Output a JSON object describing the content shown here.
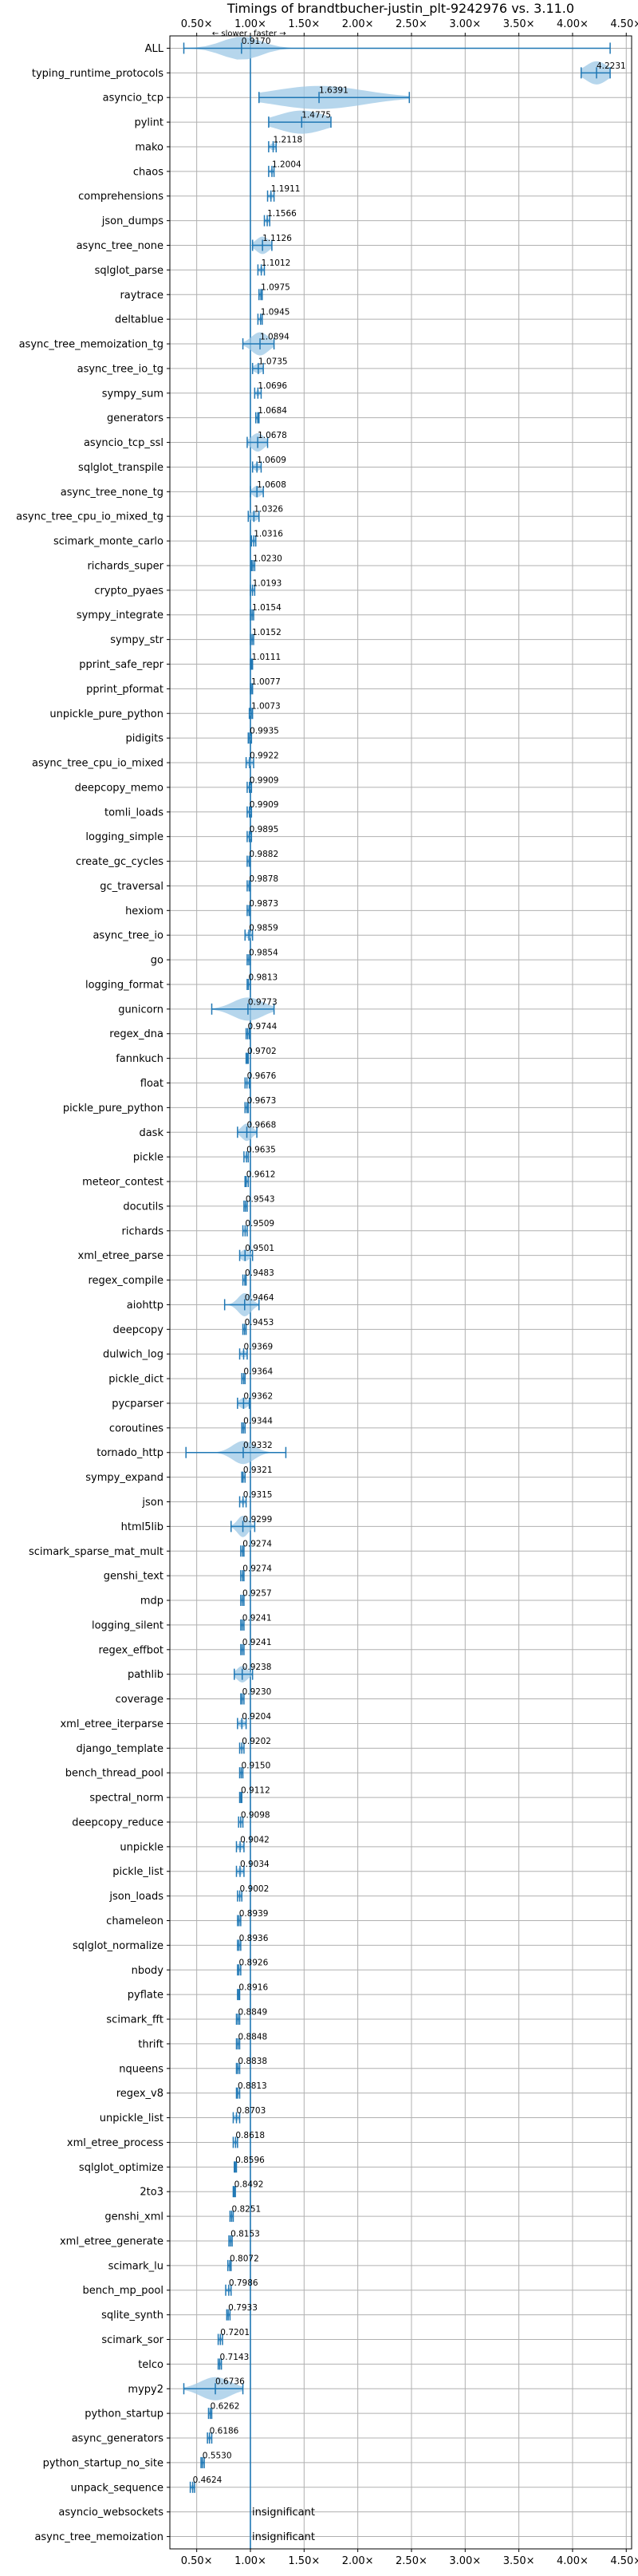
{
  "chart_data": {
    "type": "violin",
    "title": "Timings of brandtbucher-justin_plt-9242976 vs. 3.11.0",
    "direction_hint": {
      "slower": "← slower",
      "faster": "faster →"
    },
    "xlim": [
      0.25,
      4.55
    ],
    "xticks": [
      0.5,
      1.0,
      1.5,
      2.0,
      2.5,
      3.0,
      3.5,
      4.0,
      4.5
    ],
    "xtick_labels": [
      "0.50×",
      "1.00×",
      "1.50×",
      "2.00×",
      "2.50×",
      "3.00×",
      "3.50×",
      "4.00×",
      "4.50×"
    ],
    "reference_line": 1.0,
    "grid": true,
    "colors": {
      "violin": "#9ec8e6",
      "whisker": "#1f77b4",
      "grid": "#b0b0b0"
    },
    "insignificant_label": "insignificant",
    "benchmarks": [
      {
        "name": "ALL",
        "value": 0.917,
        "label": "0.9170",
        "min": 0.38,
        "max": 4.35,
        "spread": 0.18
      },
      {
        "name": "typing_runtime_protocols",
        "value": 4.2231,
        "label": "4.2231",
        "min": 4.08,
        "max": 4.35,
        "spread": 0.1
      },
      {
        "name": "asyncio_tcp",
        "value": 1.6391,
        "label": "1.6391",
        "min": 1.08,
        "max": 2.48,
        "spread": 0.42
      },
      {
        "name": "pylint",
        "value": 1.4775,
        "label": "1.4775",
        "min": 1.17,
        "max": 1.75,
        "spread": 0.22
      },
      {
        "name": "mako",
        "value": 1.2118,
        "label": "1.2118",
        "min": 1.17,
        "max": 1.24,
        "spread": 0.03
      },
      {
        "name": "chaos",
        "value": 1.2004,
        "label": "1.2004",
        "min": 1.17,
        "max": 1.22,
        "spread": 0.02
      },
      {
        "name": "comprehensions",
        "value": 1.1911,
        "label": "1.1911",
        "min": 1.16,
        "max": 1.22,
        "spread": 0.02
      },
      {
        "name": "json_dumps",
        "value": 1.1566,
        "label": "1.1566",
        "min": 1.13,
        "max": 1.18,
        "spread": 0.02
      },
      {
        "name": "async_tree_none",
        "value": 1.1126,
        "label": "1.1126",
        "min": 1.02,
        "max": 1.2,
        "spread": 0.06
      },
      {
        "name": "sqlglot_parse",
        "value": 1.1012,
        "label": "1.1012",
        "min": 1.07,
        "max": 1.13,
        "spread": 0.02
      },
      {
        "name": "raytrace",
        "value": 1.0975,
        "label": "1.0975",
        "min": 1.08,
        "max": 1.11,
        "spread": 0.02
      },
      {
        "name": "deltablue",
        "value": 1.0945,
        "label": "1.0945",
        "min": 1.07,
        "max": 1.11,
        "spread": 0.02
      },
      {
        "name": "async_tree_memoization_tg",
        "value": 1.0894,
        "label": "1.0894",
        "min": 0.93,
        "max": 1.22,
        "spread": 0.08
      },
      {
        "name": "async_tree_io_tg",
        "value": 1.0735,
        "label": "1.0735",
        "min": 1.02,
        "max": 1.12,
        "spread": 0.04
      },
      {
        "name": "sympy_sum",
        "value": 1.0696,
        "label": "1.0696",
        "min": 1.04,
        "max": 1.1,
        "spread": 0.02
      },
      {
        "name": "generators",
        "value": 1.0684,
        "label": "1.0684",
        "min": 1.05,
        "max": 1.08,
        "spread": 0.02
      },
      {
        "name": "asyncio_tcp_ssl",
        "value": 1.0678,
        "label": "1.0678",
        "min": 0.97,
        "max": 1.16,
        "spread": 0.06
      },
      {
        "name": "sqlglot_transpile",
        "value": 1.0609,
        "label": "1.0609",
        "min": 1.02,
        "max": 1.1,
        "spread": 0.03
      },
      {
        "name": "async_tree_none_tg",
        "value": 1.0608,
        "label": "1.0608",
        "min": 1.0,
        "max": 1.12,
        "spread": 0.04
      },
      {
        "name": "async_tree_cpu_io_mixed_tg",
        "value": 1.0326,
        "label": "1.0326",
        "min": 0.98,
        "max": 1.08,
        "spread": 0.04
      },
      {
        "name": "scimark_monte_carlo",
        "value": 1.0316,
        "label": "1.0316",
        "min": 1.01,
        "max": 1.05,
        "spread": 0.02
      },
      {
        "name": "richards_super",
        "value": 1.023,
        "label": "1.0230",
        "min": 1.01,
        "max": 1.04,
        "spread": 0.02
      },
      {
        "name": "crypto_pyaes",
        "value": 1.0193,
        "label": "1.0193",
        "min": 1.0,
        "max": 1.04,
        "spread": 0.02
      },
      {
        "name": "sympy_integrate",
        "value": 1.0154,
        "label": "1.0154",
        "min": 1.0,
        "max": 1.03,
        "spread": 0.02
      },
      {
        "name": "sympy_str",
        "value": 1.0152,
        "label": "1.0152",
        "min": 1.0,
        "max": 1.03,
        "spread": 0.02
      },
      {
        "name": "pprint_safe_repr",
        "value": 1.0111,
        "label": "1.0111",
        "min": 1.0,
        "max": 1.02,
        "spread": 0.02
      },
      {
        "name": "pprint_pformat",
        "value": 1.0077,
        "label": "1.0077",
        "min": 1.0,
        "max": 1.02,
        "spread": 0.02
      },
      {
        "name": "unpickle_pure_python",
        "value": 1.0073,
        "label": "1.0073",
        "min": 0.99,
        "max": 1.02,
        "spread": 0.02
      },
      {
        "name": "pidigits",
        "value": 0.9935,
        "label": "0.9935",
        "min": 0.98,
        "max": 1.01,
        "spread": 0.02
      },
      {
        "name": "async_tree_cpu_io_mixed",
        "value": 0.9922,
        "label": "0.9922",
        "min": 0.96,
        "max": 1.03,
        "spread": 0.03
      },
      {
        "name": "deepcopy_memo",
        "value": 0.9909,
        "label": "0.9909",
        "min": 0.97,
        "max": 1.01,
        "spread": 0.02
      },
      {
        "name": "tomli_loads",
        "value": 0.9909,
        "label": "0.9909",
        "min": 0.97,
        "max": 1.01,
        "spread": 0.02
      },
      {
        "name": "logging_simple",
        "value": 0.9895,
        "label": "0.9895",
        "min": 0.97,
        "max": 1.01,
        "spread": 0.02
      },
      {
        "name": "create_gc_cycles",
        "value": 0.9882,
        "label": "0.9882",
        "min": 0.97,
        "max": 1.0,
        "spread": 0.02
      },
      {
        "name": "gc_traversal",
        "value": 0.9878,
        "label": "0.9878",
        "min": 0.97,
        "max": 1.0,
        "spread": 0.02
      },
      {
        "name": "hexiom",
        "value": 0.9873,
        "label": "0.9873",
        "min": 0.97,
        "max": 1.0,
        "spread": 0.02
      },
      {
        "name": "async_tree_io",
        "value": 0.9859,
        "label": "0.9859",
        "min": 0.95,
        "max": 1.02,
        "spread": 0.03
      },
      {
        "name": "go",
        "value": 0.9854,
        "label": "0.9854",
        "min": 0.97,
        "max": 1.0,
        "spread": 0.02
      },
      {
        "name": "logging_format",
        "value": 0.9813,
        "label": "0.9813",
        "min": 0.97,
        "max": 1.0,
        "spread": 0.02
      },
      {
        "name": "gunicorn",
        "value": 0.9773,
        "label": "0.9773",
        "min": 0.64,
        "max": 1.22,
        "spread": 0.14
      },
      {
        "name": "regex_dna",
        "value": 0.9744,
        "label": "0.9744",
        "min": 0.96,
        "max": 0.99,
        "spread": 0.02
      },
      {
        "name": "fannkuch",
        "value": 0.9702,
        "label": "0.9702",
        "min": 0.96,
        "max": 0.98,
        "spread": 0.02
      },
      {
        "name": "float",
        "value": 0.9676,
        "label": "0.9676",
        "min": 0.95,
        "max": 0.99,
        "spread": 0.02
      },
      {
        "name": "pickle_pure_python",
        "value": 0.9673,
        "label": "0.9673",
        "min": 0.95,
        "max": 0.98,
        "spread": 0.02
      },
      {
        "name": "dask",
        "value": 0.9668,
        "label": "0.9668",
        "min": 0.88,
        "max": 1.06,
        "spread": 0.05
      },
      {
        "name": "pickle",
        "value": 0.9635,
        "label": "0.9635",
        "min": 0.94,
        "max": 0.98,
        "spread": 0.02
      },
      {
        "name": "meteor_contest",
        "value": 0.9612,
        "label": "0.9612",
        "min": 0.95,
        "max": 0.98,
        "spread": 0.02
      },
      {
        "name": "docutils",
        "value": 0.9543,
        "label": "0.9543",
        "min": 0.94,
        "max": 0.97,
        "spread": 0.02
      },
      {
        "name": "richards",
        "value": 0.9509,
        "label": "0.9509",
        "min": 0.93,
        "max": 0.97,
        "spread": 0.02
      },
      {
        "name": "xml_etree_parse",
        "value": 0.9501,
        "label": "0.9501",
        "min": 0.9,
        "max": 1.02,
        "spread": 0.04
      },
      {
        "name": "regex_compile",
        "value": 0.9483,
        "label": "0.9483",
        "min": 0.93,
        "max": 0.96,
        "spread": 0.02
      },
      {
        "name": "aiohttp",
        "value": 0.9464,
        "label": "0.9464",
        "min": 0.76,
        "max": 1.08,
        "spread": 0.06
      },
      {
        "name": "deepcopy",
        "value": 0.9453,
        "label": "0.9453",
        "min": 0.93,
        "max": 0.96,
        "spread": 0.02
      },
      {
        "name": "dulwich_log",
        "value": 0.9369,
        "label": "0.9369",
        "min": 0.9,
        "max": 0.97,
        "spread": 0.03
      },
      {
        "name": "pickle_dict",
        "value": 0.9364,
        "label": "0.9364",
        "min": 0.92,
        "max": 0.95,
        "spread": 0.02
      },
      {
        "name": "pycparser",
        "value": 0.9362,
        "label": "0.9362",
        "min": 0.88,
        "max": 0.99,
        "spread": 0.04
      },
      {
        "name": "coroutines",
        "value": 0.9344,
        "label": "0.9344",
        "min": 0.92,
        "max": 0.95,
        "spread": 0.02
      },
      {
        "name": "tornado_http",
        "value": 0.9332,
        "label": "0.9332",
        "min": 0.4,
        "max": 1.33,
        "spread": 0.1
      },
      {
        "name": "sympy_expand",
        "value": 0.9321,
        "label": "0.9321",
        "min": 0.92,
        "max": 0.95,
        "spread": 0.02
      },
      {
        "name": "json",
        "value": 0.9315,
        "label": "0.9315",
        "min": 0.9,
        "max": 0.96,
        "spread": 0.02
      },
      {
        "name": "html5lib",
        "value": 0.9299,
        "label": "0.9299",
        "min": 0.82,
        "max": 1.04,
        "spread": 0.05
      },
      {
        "name": "scimark_sparse_mat_mult",
        "value": 0.9274,
        "label": "0.9274",
        "min": 0.91,
        "max": 0.94,
        "spread": 0.02
      },
      {
        "name": "genshi_text",
        "value": 0.9274,
        "label": "0.9274",
        "min": 0.91,
        "max": 0.94,
        "spread": 0.02
      },
      {
        "name": "mdp",
        "value": 0.9257,
        "label": "0.9257",
        "min": 0.91,
        "max": 0.94,
        "spread": 0.02
      },
      {
        "name": "logging_silent",
        "value": 0.9241,
        "label": "0.9241",
        "min": 0.91,
        "max": 0.94,
        "spread": 0.02
      },
      {
        "name": "regex_effbot",
        "value": 0.9241,
        "label": "0.9241",
        "min": 0.91,
        "max": 0.94,
        "spread": 0.02
      },
      {
        "name": "pathlib",
        "value": 0.9238,
        "label": "0.9238",
        "min": 0.85,
        "max": 1.02,
        "spread": 0.05
      },
      {
        "name": "coverage",
        "value": 0.923,
        "label": "0.9230",
        "min": 0.91,
        "max": 0.94,
        "spread": 0.02
      },
      {
        "name": "xml_etree_iterparse",
        "value": 0.9204,
        "label": "0.9204",
        "min": 0.88,
        "max": 0.96,
        "spread": 0.03
      },
      {
        "name": "django_template",
        "value": 0.9202,
        "label": "0.9202",
        "min": 0.9,
        "max": 0.94,
        "spread": 0.02
      },
      {
        "name": "bench_thread_pool",
        "value": 0.915,
        "label": "0.9150",
        "min": 0.9,
        "max": 0.93,
        "spread": 0.02
      },
      {
        "name": "spectral_norm",
        "value": 0.9112,
        "label": "0.9112",
        "min": 0.9,
        "max": 0.92,
        "spread": 0.02
      },
      {
        "name": "deepcopy_reduce",
        "value": 0.9098,
        "label": "0.9098",
        "min": 0.89,
        "max": 0.93,
        "spread": 0.02
      },
      {
        "name": "unpickle",
        "value": 0.9042,
        "label": "0.9042",
        "min": 0.87,
        "max": 0.94,
        "spread": 0.03
      },
      {
        "name": "pickle_list",
        "value": 0.9034,
        "label": "0.9034",
        "min": 0.87,
        "max": 0.94,
        "spread": 0.03
      },
      {
        "name": "json_loads",
        "value": 0.9002,
        "label": "0.9002",
        "min": 0.88,
        "max": 0.92,
        "spread": 0.02
      },
      {
        "name": "chameleon",
        "value": 0.8939,
        "label": "0.8939",
        "min": 0.88,
        "max": 0.91,
        "spread": 0.02
      },
      {
        "name": "sqlglot_normalize",
        "value": 0.8936,
        "label": "0.8936",
        "min": 0.88,
        "max": 0.91,
        "spread": 0.02
      },
      {
        "name": "nbody",
        "value": 0.8926,
        "label": "0.8926",
        "min": 0.88,
        "max": 0.91,
        "spread": 0.02
      },
      {
        "name": "pyflate",
        "value": 0.8916,
        "label": "0.8916",
        "min": 0.88,
        "max": 0.9,
        "spread": 0.02
      },
      {
        "name": "scimark_fft",
        "value": 0.8849,
        "label": "0.8849",
        "min": 0.87,
        "max": 0.9,
        "spread": 0.02
      },
      {
        "name": "thrift",
        "value": 0.8848,
        "label": "0.8848",
        "min": 0.87,
        "max": 0.9,
        "spread": 0.02
      },
      {
        "name": "nqueens",
        "value": 0.8838,
        "label": "0.8838",
        "min": 0.87,
        "max": 0.9,
        "spread": 0.02
      },
      {
        "name": "regex_v8",
        "value": 0.8813,
        "label": "0.8813",
        "min": 0.87,
        "max": 0.9,
        "spread": 0.02
      },
      {
        "name": "unpickle_list",
        "value": 0.8703,
        "label": "0.8703",
        "min": 0.84,
        "max": 0.9,
        "spread": 0.03
      },
      {
        "name": "xml_etree_process",
        "value": 0.8618,
        "label": "0.8618",
        "min": 0.84,
        "max": 0.88,
        "spread": 0.02
      },
      {
        "name": "sqlglot_optimize",
        "value": 0.8596,
        "label": "0.8596",
        "min": 0.85,
        "max": 0.87,
        "spread": 0.02
      },
      {
        "name": "2to3",
        "value": 0.8492,
        "label": "0.8492",
        "min": 0.84,
        "max": 0.86,
        "spread": 0.02
      },
      {
        "name": "genshi_xml",
        "value": 0.8251,
        "label": "0.8251",
        "min": 0.81,
        "max": 0.84,
        "spread": 0.02
      },
      {
        "name": "xml_etree_generate",
        "value": 0.8153,
        "label": "0.8153",
        "min": 0.8,
        "max": 0.83,
        "spread": 0.02
      },
      {
        "name": "scimark_lu",
        "value": 0.8072,
        "label": "0.8072",
        "min": 0.79,
        "max": 0.82,
        "spread": 0.02
      },
      {
        "name": "bench_mp_pool",
        "value": 0.7986,
        "label": "0.7986",
        "min": 0.77,
        "max": 0.82,
        "spread": 0.02
      },
      {
        "name": "sqlite_synth",
        "value": 0.7933,
        "label": "0.7933",
        "min": 0.78,
        "max": 0.81,
        "spread": 0.02
      },
      {
        "name": "scimark_sor",
        "value": 0.7201,
        "label": "0.7201",
        "min": 0.7,
        "max": 0.74,
        "spread": 0.02
      },
      {
        "name": "telco",
        "value": 0.7143,
        "label": "0.7143",
        "min": 0.7,
        "max": 0.73,
        "spread": 0.02
      },
      {
        "name": "mypy2",
        "value": 0.6736,
        "label": "0.6736",
        "min": 0.38,
        "max": 0.93,
        "spread": 0.14
      },
      {
        "name": "python_startup",
        "value": 0.6262,
        "label": "0.6262",
        "min": 0.61,
        "max": 0.64,
        "spread": 0.02
      },
      {
        "name": "async_generators",
        "value": 0.6186,
        "label": "0.6186",
        "min": 0.6,
        "max": 0.64,
        "spread": 0.02
      },
      {
        "name": "python_startup_no_site",
        "value": 0.553,
        "label": "0.5530",
        "min": 0.54,
        "max": 0.57,
        "spread": 0.02
      },
      {
        "name": "unpack_sequence",
        "value": 0.4624,
        "label": "0.4624",
        "min": 0.44,
        "max": 0.48,
        "spread": 0.03
      },
      {
        "name": "asyncio_websockets",
        "value": null,
        "label": "",
        "insignificant": true
      },
      {
        "name": "async_tree_memoization",
        "value": null,
        "label": "",
        "insignificant": true
      }
    ]
  }
}
